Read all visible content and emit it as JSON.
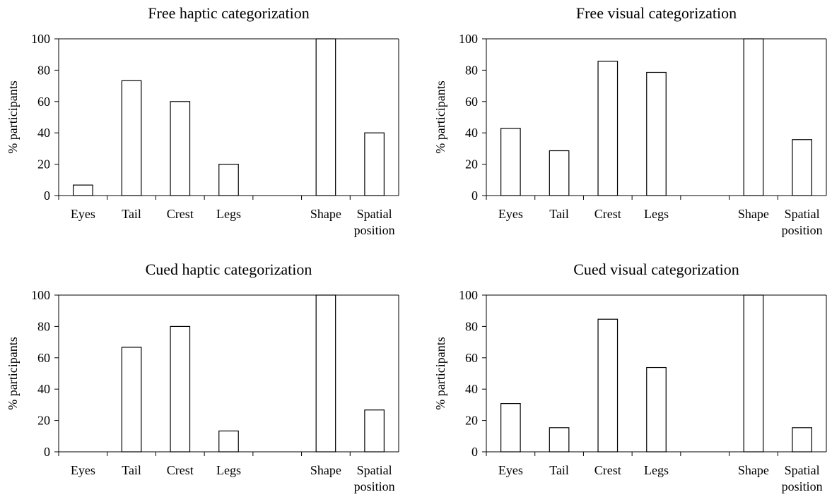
{
  "chart_data": [
    {
      "type": "bar",
      "title": "Free haptic categorization",
      "ylabel": "% participants",
      "xlabel": "",
      "ylim": [
        0,
        100
      ],
      "yticks": [
        0,
        20,
        40,
        60,
        80,
        100
      ],
      "categories": [
        "Eyes",
        "Tail",
        "Crest",
        "Legs",
        "",
        "Shape",
        "Spatial position"
      ],
      "values": [
        6.7,
        73.3,
        60,
        20,
        0,
        100,
        40
      ]
    },
    {
      "type": "bar",
      "title": "Free visual categorization",
      "ylabel": "% participants",
      "xlabel": "",
      "ylim": [
        0,
        100
      ],
      "yticks": [
        0,
        20,
        40,
        60,
        80,
        100
      ],
      "categories": [
        "Eyes",
        "Tail",
        "Crest",
        "Legs",
        "",
        "Shape",
        "Spatial position"
      ],
      "values": [
        42.9,
        28.6,
        85.7,
        78.6,
        0,
        100,
        35.7
      ]
    },
    {
      "type": "bar",
      "title": "Cued haptic categorization",
      "ylabel": "% participants",
      "xlabel": "",
      "ylim": [
        0,
        100
      ],
      "yticks": [
        0,
        20,
        40,
        60,
        80,
        100
      ],
      "categories": [
        "Eyes",
        "Tail",
        "Crest",
        "Legs",
        "",
        "Shape",
        "Spatial position"
      ],
      "values": [
        0,
        66.7,
        80,
        13.3,
        0,
        100,
        26.7
      ]
    },
    {
      "type": "bar",
      "title": "Cued visual categorization",
      "ylabel": "% participants",
      "xlabel": "",
      "ylim": [
        0,
        100
      ],
      "yticks": [
        0,
        20,
        40,
        60,
        80,
        100
      ],
      "categories": [
        "Eyes",
        "Tail",
        "Crest",
        "Legs",
        "",
        "Shape",
        "Spatial position"
      ],
      "values": [
        30.8,
        15.4,
        84.6,
        53.8,
        0,
        100,
        15.4
      ]
    }
  ]
}
